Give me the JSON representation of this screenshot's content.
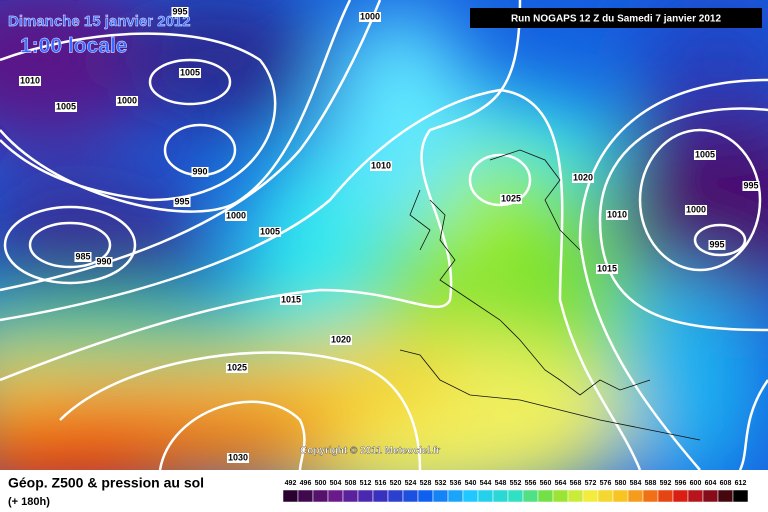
{
  "header": {
    "date": "Dimanche 15 janvier 2012",
    "time": "1:00 locale",
    "run": "Run NOGAPS 12 Z du Samedi 7 janvier 2012",
    "copyright": "Copyright © 2011 Meteociel.fr"
  },
  "footer": {
    "title": "Géop. Z500 & pression au sol",
    "lead": "(+ 180h)"
  },
  "legend": {
    "values": [
      492,
      496,
      500,
      504,
      508,
      512,
      516,
      520,
      524,
      528,
      532,
      536,
      540,
      544,
      548,
      552,
      556,
      560,
      564,
      568,
      572,
      576,
      580,
      584,
      588,
      592,
      596,
      600,
      604,
      608,
      612
    ]
  },
  "isobar_labels": [
    "995",
    "1000",
    "1010",
    "1005",
    "1000",
    "1005",
    "990",
    "995",
    "1000",
    "1005",
    "985",
    "990",
    "1010",
    "1025",
    "1020",
    "1005",
    "995",
    "1000",
    "1010",
    "995",
    "1015",
    "1015",
    "1020",
    "1025",
    "1030"
  ]
}
